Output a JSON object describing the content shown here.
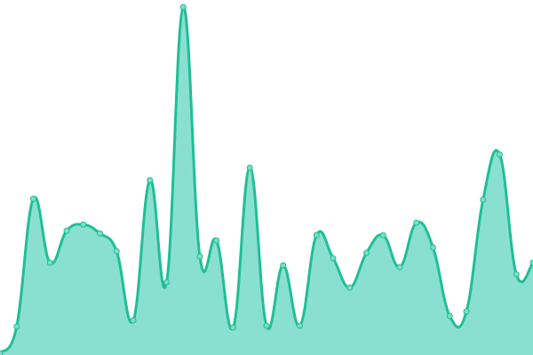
{
  "chart_data": {
    "type": "area",
    "title": "",
    "xlabel": "",
    "ylabel": "",
    "x": [
      0,
      1,
      2,
      3,
      4,
      5,
      6,
      7,
      8,
      9,
      10,
      11,
      12,
      13,
      14,
      15,
      16,
      17,
      18,
      19,
      20,
      21,
      22,
      23,
      24,
      25,
      26,
      27,
      28,
      29,
      30,
      31,
      32
    ],
    "values": [
      2,
      32,
      176,
      104,
      140,
      147,
      137,
      117,
      39,
      197,
      82,
      392,
      111,
      129,
      31,
      211,
      33,
      101,
      33,
      135,
      109,
      76,
      115,
      135,
      99,
      149,
      121,
      44,
      49,
      175,
      226,
      91,
      104
    ],
    "ylim": [
      0,
      400
    ],
    "xlim": [
      0,
      32
    ],
    "grid": false,
    "axes_visible": false,
    "curve": "smooth",
    "colors": {
      "line": "#1fbf95",
      "fill": "#8ae0d0",
      "marker_fill": "#7fdcc6",
      "marker_stroke": "#1fbf95"
    }
  }
}
